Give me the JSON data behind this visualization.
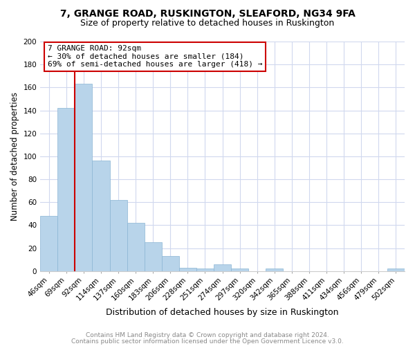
{
  "title": "7, GRANGE ROAD, RUSKINGTON, SLEAFORD, NG34 9FA",
  "subtitle": "Size of property relative to detached houses in Ruskington",
  "xlabel": "Distribution of detached houses by size in Ruskington",
  "ylabel": "Number of detached properties",
  "bar_labels": [
    "46sqm",
    "69sqm",
    "92sqm",
    "114sqm",
    "137sqm",
    "160sqm",
    "183sqm",
    "206sqm",
    "228sqm",
    "251sqm",
    "274sqm",
    "297sqm",
    "320sqm",
    "342sqm",
    "365sqm",
    "388sqm",
    "411sqm",
    "434sqm",
    "456sqm",
    "479sqm",
    "502sqm"
  ],
  "bar_values": [
    48,
    142,
    163,
    96,
    62,
    42,
    25,
    13,
    3,
    2,
    6,
    2,
    0,
    2,
    0,
    0,
    0,
    0,
    0,
    0,
    2
  ],
  "bar_color": "#b8d4ea",
  "bar_edge_color": "#8ab4d4",
  "highlight_bar_index": 2,
  "highlight_color": "#cc0000",
  "annotation_title": "7 GRANGE ROAD: 92sqm",
  "annotation_line1": "← 30% of detached houses are smaller (184)",
  "annotation_line2": "69% of semi-detached houses are larger (418) →",
  "annotation_box_facecolor": "#ffffff",
  "annotation_box_edgecolor": "#cc0000",
  "ylim": [
    0,
    200
  ],
  "yticks": [
    0,
    20,
    40,
    60,
    80,
    100,
    120,
    140,
    160,
    180,
    200
  ],
  "grid_color": "#d0d8ee",
  "background_color": "#ffffff",
  "plot_bg_color": "#ffffff",
  "footer_line1": "Contains HM Land Registry data © Crown copyright and database right 2024.",
  "footer_line2": "Contains public sector information licensed under the Open Government Licence v3.0.",
  "footer_color": "#888888",
  "title_fontsize": 10,
  "subtitle_fontsize": 9,
  "ylabel_fontsize": 8.5,
  "xlabel_fontsize": 9,
  "tick_fontsize": 7.5,
  "annotation_fontsize": 8.0,
  "footer_fontsize": 6.5
}
